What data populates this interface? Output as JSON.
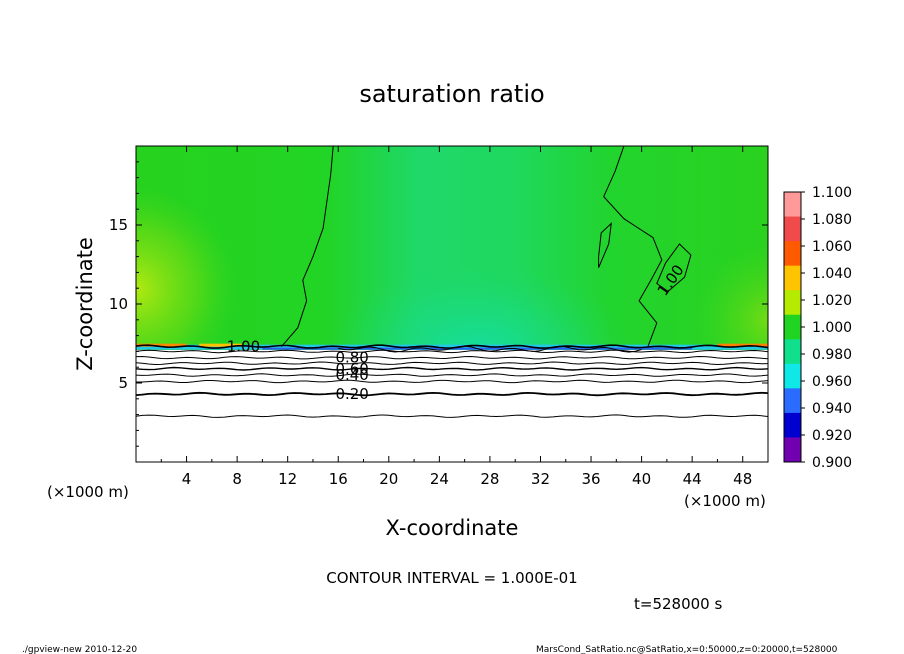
{
  "chart_data": {
    "type": "heatmap",
    "title": "saturation ratio",
    "xlabel": "X-coordinate",
    "ylabel": "Z-coordinate",
    "x_units": "(×1000 m)",
    "y_units": "(×1000 m)",
    "xlim": [
      0,
      50
    ],
    "ylim": [
      0,
      20
    ],
    "x_ticks": [
      "4",
      "8",
      "12",
      "16",
      "20",
      "24",
      "28",
      "32",
      "36",
      "40",
      "44",
      "48"
    ],
    "y_ticks": [
      "5",
      "10",
      "15"
    ],
    "colorbar": {
      "levels": [
        "1.100",
        "1.080",
        "1.060",
        "1.040",
        "1.020",
        "1.000",
        "0.980",
        "0.960",
        "0.940",
        "0.920",
        "0.900"
      ],
      "colors": [
        "#ff9a9a",
        "#f04a4a",
        "#ff5a00",
        "#ffc400",
        "#b4eb00",
        "#22d422",
        "#10e08c",
        "#10e8e8",
        "#2a6cff",
        "#0000d0",
        "#7000b0"
      ]
    },
    "contour_interval_text": "CONTOUR INTERVAL = 1.000E-01",
    "contour_labels": [
      {
        "text": "1.00",
        "x": 8.5,
        "z": 7.3
      },
      {
        "text": "0.80",
        "x": 17.1,
        "z": 6.6
      },
      {
        "text": "0.60",
        "x": 17.1,
        "z": 5.9
      },
      {
        "text": "0.40",
        "x": 17.1,
        "z": 5.5
      },
      {
        "text": "0.20",
        "x": 17.1,
        "z": 4.3
      },
      {
        "text": "1.00",
        "x": 42.3,
        "z": 11.5
      }
    ],
    "cloud_base_z": 7.3,
    "time_text": "t=528000 s"
  },
  "footer": {
    "left": "./gpview-new  2010-12-20",
    "right": "MarsCond_SatRatio.nc@SatRatio,x=0:50000,z=0:20000,t=528000"
  }
}
